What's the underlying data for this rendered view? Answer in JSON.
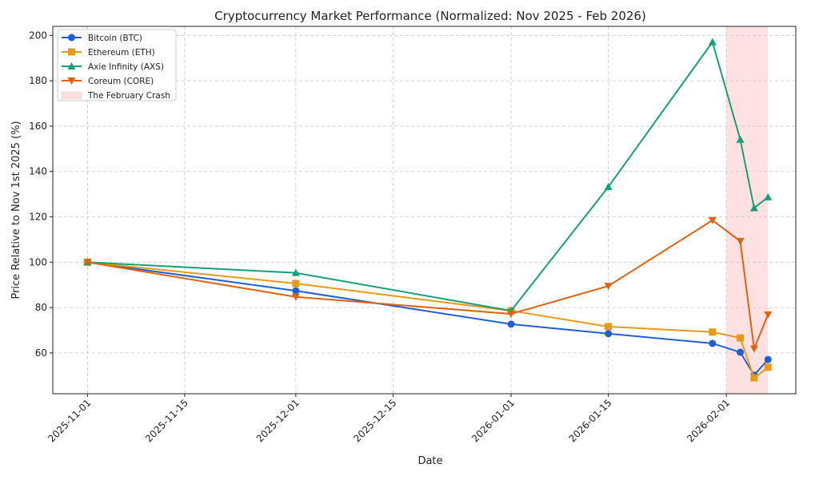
{
  "chart_data": {
    "type": "line",
    "title": "Cryptocurrency Market Performance (Normalized: Nov 2025 - Feb 2026)",
    "xlabel": "Date",
    "ylabel": "Price Relative to Nov 1st 2025 (%)",
    "x": [
      "2025-11-01",
      "2025-12-01",
      "2026-01-01",
      "2026-01-15",
      "2026-01-30",
      "2026-02-03",
      "2026-02-05",
      "2026-02-07"
    ],
    "xlim": [
      "2025-10-27",
      "2026-02-11"
    ],
    "ylim": [
      42,
      204
    ],
    "x_ticks": [
      "2025-11-01",
      "2025-11-15",
      "2025-12-01",
      "2025-12-15",
      "2026-01-01",
      "2026-01-15",
      "2026-02-01"
    ],
    "y_ticks": [
      60,
      80,
      100,
      120,
      140,
      160,
      180,
      200
    ],
    "grid": true,
    "legend_position": "top-left",
    "series": [
      {
        "name": "Bitcoin (BTC)",
        "color": "#1f5fd6",
        "marker": "circle",
        "values": [
          100,
          87.4,
          72.7,
          68.5,
          64.2,
          60.3,
          50.2,
          57.1
        ]
      },
      {
        "name": "Ethereum (ETH)",
        "color": "#e69a17",
        "marker": "square",
        "values": [
          100,
          90.6,
          78.6,
          71.6,
          69.2,
          66.6,
          49.0,
          53.7
        ]
      },
      {
        "name": "Axie Infinity (AXS)",
        "color": "#16a078",
        "marker": "triangle-up",
        "values": [
          100,
          95.3,
          78.6,
          133.2,
          197.1,
          154.1,
          123.9,
          128.7
        ]
      },
      {
        "name": "Coreum (CORE)",
        "color": "#e0620d",
        "marker": "triangle-down",
        "values": [
          100,
          84.7,
          77.2,
          89.5,
          118.5,
          109.3,
          61.9,
          76.9
        ]
      }
    ],
    "annotations": [
      {
        "type": "shaded-span",
        "label": "The February Crash",
        "from": "2026-02-01",
        "to": "2026-02-07",
        "color": "#ffdede"
      }
    ]
  }
}
